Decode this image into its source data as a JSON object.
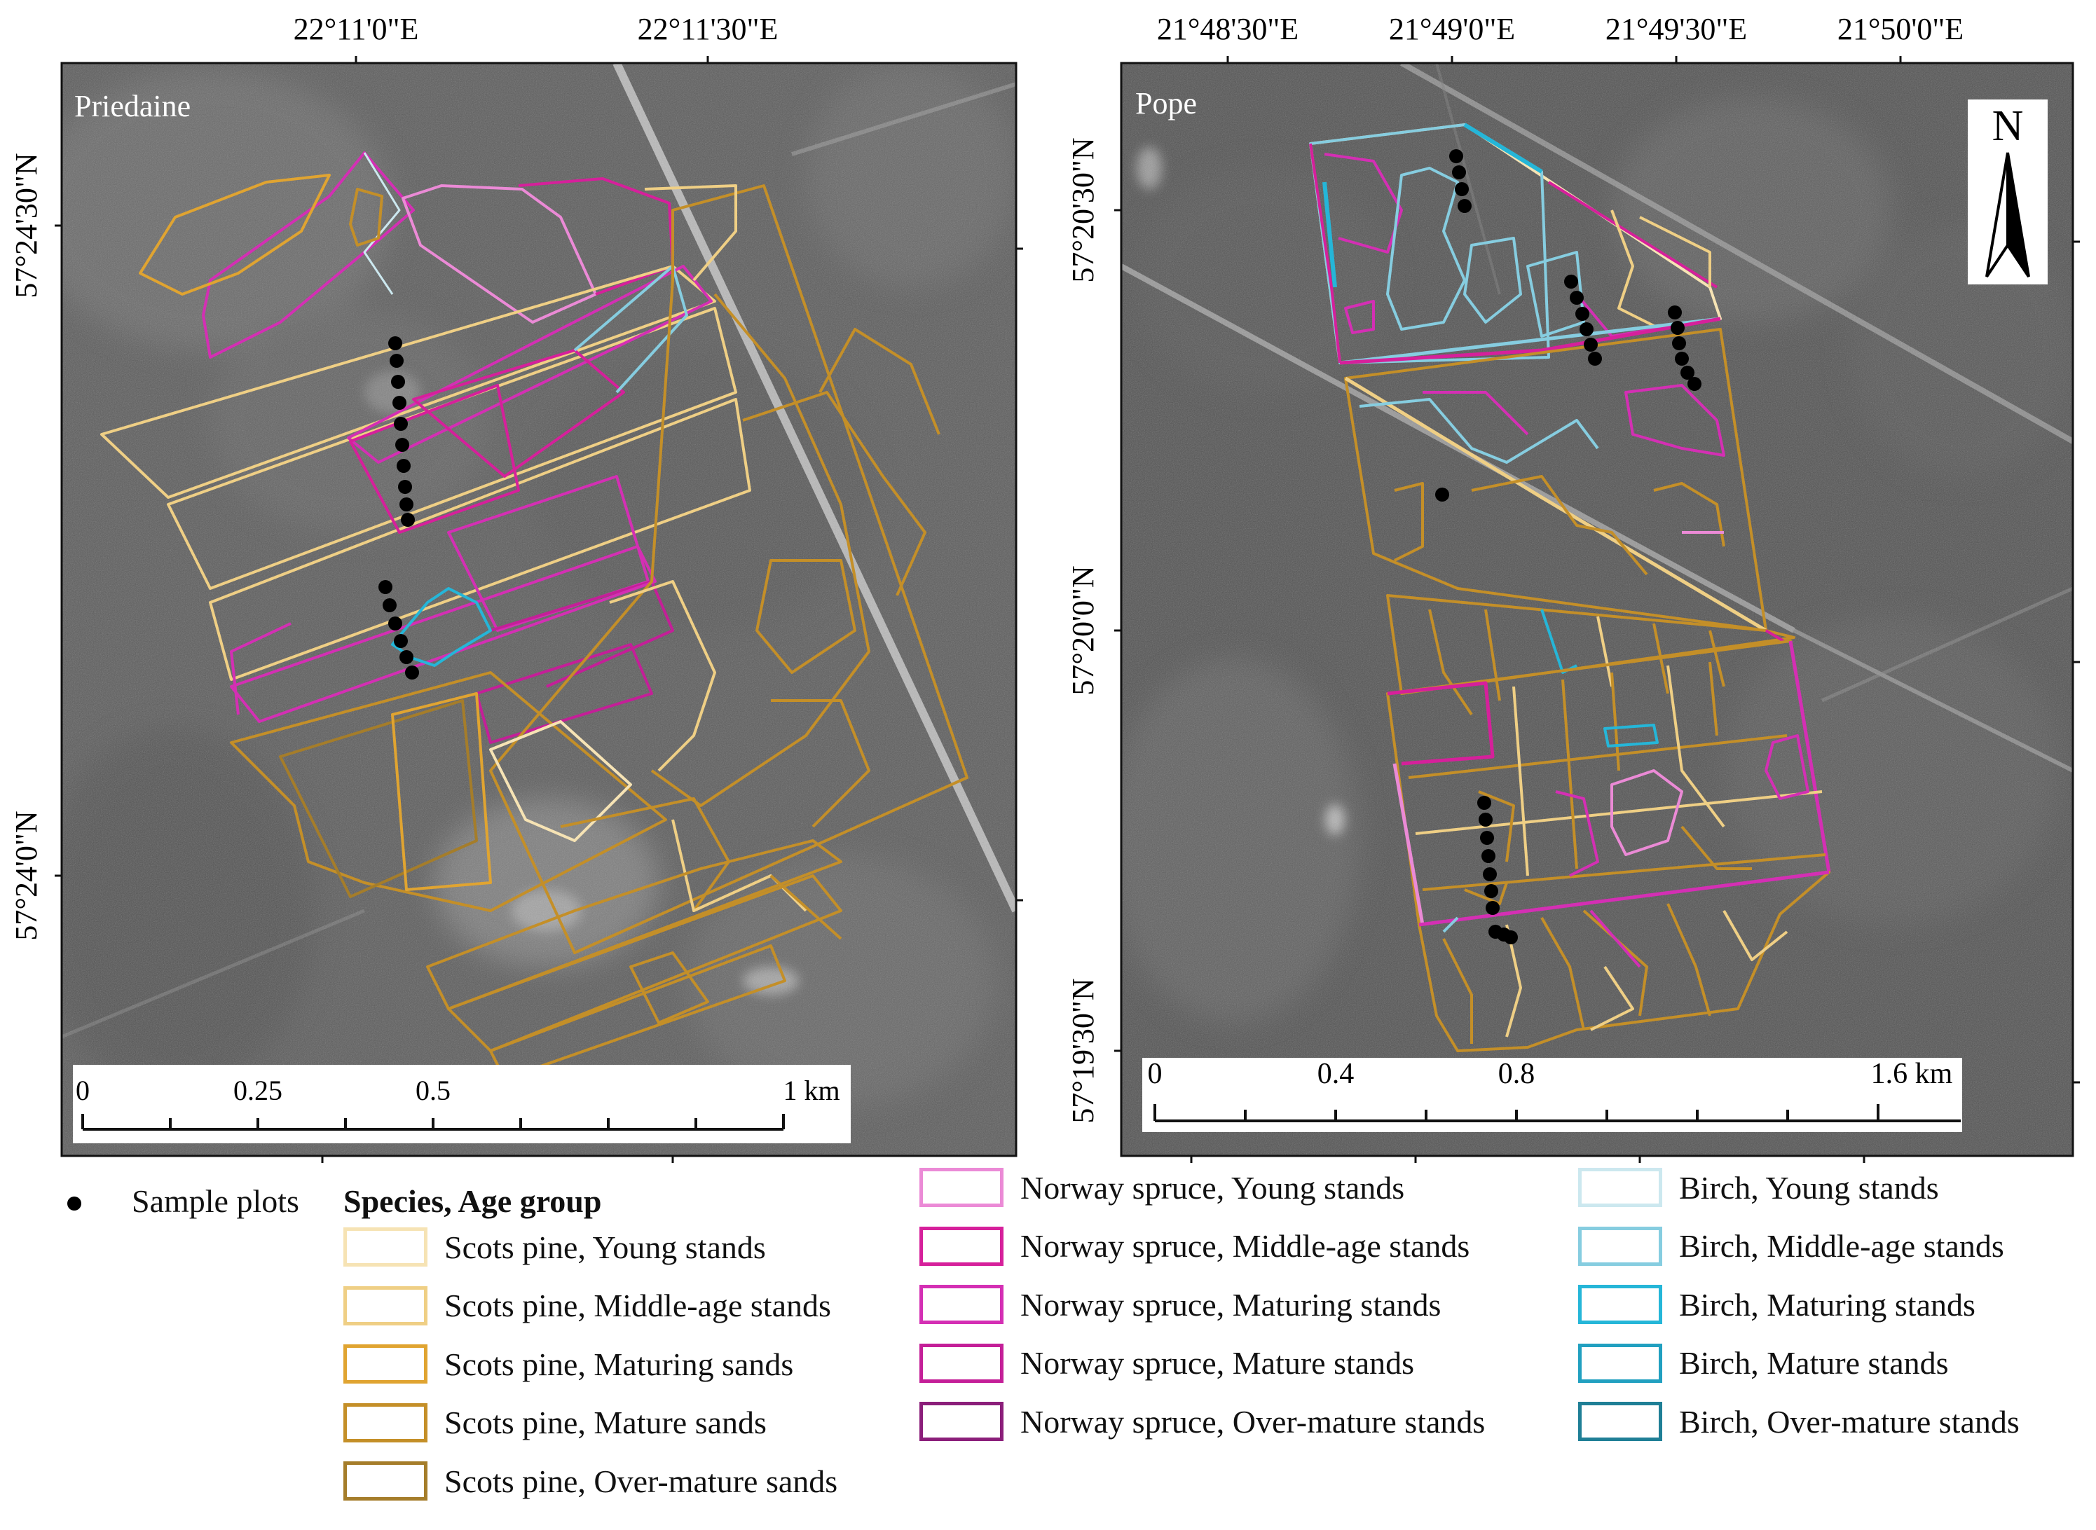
{
  "maps": [
    {
      "name": "Priedaine",
      "top_labels": [
        "22°11'0\"E",
        "22°11'30\"E"
      ],
      "side_labels": [
        "57°24'30\"N",
        "57°24'0\"N"
      ],
      "scale": {
        "ticks": [
          "0",
          "0.25",
          "0.5",
          "1 km"
        ]
      }
    },
    {
      "name": "Pope",
      "top_labels": [
        "21°48'30\"E",
        "21°49'0\"E",
        "21°49'30\"E",
        "21°50'0\"E"
      ],
      "side_labels": [
        "57°20'30\"N",
        "57°20'0\"N",
        "57°19'30\"N"
      ],
      "scale": {
        "ticks": [
          "0",
          "0.4",
          "0.8",
          "1.6 km"
        ]
      },
      "north_arrow": "N"
    }
  ],
  "legend": {
    "sample_plots": "Sample plots",
    "heading": "Species, Age group",
    "scots_pine": [
      {
        "label": "Scots pine, Young stands",
        "color": "#f6e3b4"
      },
      {
        "label": "Scots pine, Middle-age stands",
        "color": "#efcf85"
      },
      {
        "label": "Scots pine, Maturing sands",
        "color": "#e0a431"
      },
      {
        "label": "Scots pine, Mature sands",
        "color": "#c48f28"
      },
      {
        "label": "Scots pine, Over-mature sands",
        "color": "#a57d2a"
      }
    ],
    "norway_spruce": [
      {
        "label": "Norway spruce, Young stands",
        "color": "#eb8ad6"
      },
      {
        "label": "Norway spruce, Middle-age stands",
        "color": "#d6209b"
      },
      {
        "label": "Norway spruce, Maturing stands",
        "color": "#d42fb4"
      },
      {
        "label": "Norway spruce, Mature stands",
        "color": "#c41f98"
      },
      {
        "label": "Norway spruce, Over-mature stands",
        "color": "#8b1e7a"
      }
    ],
    "birch": [
      {
        "label": "Birch, Young stands",
        "color": "#cce8ef"
      },
      {
        "label": "Birch, Middle-age stands",
        "color": "#86cde0"
      },
      {
        "label": "Birch, Maturing stands",
        "color": "#25b6d8"
      },
      {
        "label": "Birch, Mature stands",
        "color": "#21a0c0"
      },
      {
        "label": "Birch, Over-mature stands",
        "color": "#1f7f96"
      }
    ]
  }
}
